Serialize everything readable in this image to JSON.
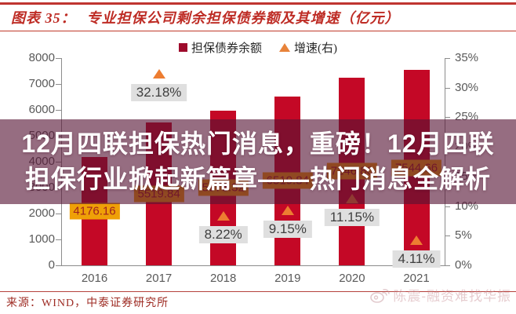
{
  "header": {
    "tag": "图表 35：",
    "title": "专业担保公司剩余担保债券额及其增速（亿元）"
  },
  "legend": {
    "items": [
      {
        "label": "担保债券余额",
        "marker": "square",
        "color": "#9e0b2c"
      },
      {
        "label": "增速(右)",
        "marker": "triangle",
        "color": "#e8833a"
      }
    ]
  },
  "overlay": {
    "line1": "12月四联担保热门消息，重磅！12月四联",
    "line2": "担保行业掀起新篇章——热门消息全解析"
  },
  "footer": {
    "source": "来源：WIND，中泰证券研究所",
    "watermark": "陈震-融资难找华振"
  },
  "chart_data": {
    "type": "bar",
    "title": "专业担保公司剩余担保债券额及其增速（亿元）",
    "categories": [
      "2016",
      "2017",
      "2018",
      "2019",
      "2020",
      "2021"
    ],
    "series": [
      {
        "name": "担保债券余额",
        "type": "bar",
        "axis": "left",
        "color": "#c40826",
        "values": [
          4176.16,
          5519.84,
          5973.32,
          6519.84,
          7246.8,
          7544.66
        ],
        "labels": [
          "4176.16",
          "5519.84",
          "5973.32",
          "6519.84",
          "7246.80",
          "7544.66"
        ]
      },
      {
        "name": "增速(右)",
        "type": "scatter",
        "marker": "triangle",
        "axis": "right",
        "color": "#ed7d31",
        "values": [
          null,
          32.18,
          8.22,
          9.15,
          11.15,
          4.11
        ],
        "labels": [
          null,
          "32.18%",
          "8.22%",
          "9.15%",
          "11.15%",
          "4.11%"
        ]
      }
    ],
    "left_axis": {
      "min": 0,
      "max": 8000,
      "step": 1000,
      "ticks": [
        "0",
        "1000",
        "2000",
        "3000",
        "4000",
        "5000",
        "6000",
        "7000",
        "8000"
      ]
    },
    "right_axis": {
      "min": 0,
      "max": 35,
      "step": 5,
      "ticks": [
        "0%",
        "5%",
        "10%",
        "15%",
        "20%",
        "25%",
        "30%",
        "35%"
      ]
    },
    "grid": false,
    "legend_position": "top"
  }
}
